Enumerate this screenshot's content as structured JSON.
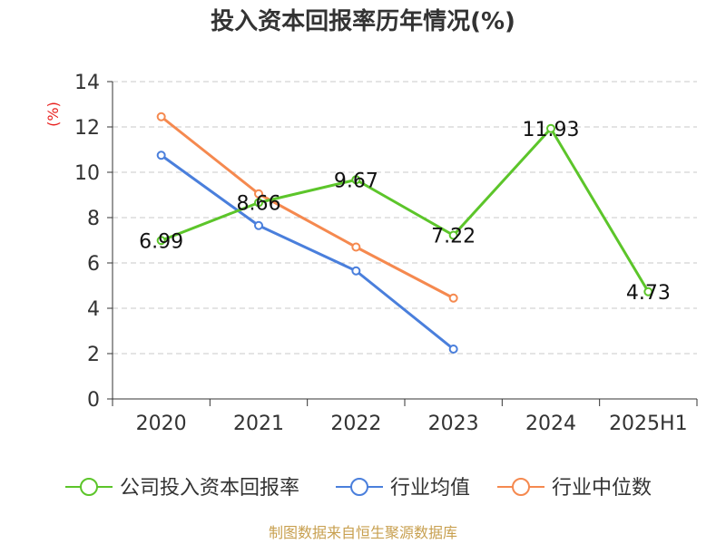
{
  "chart_data": {
    "type": "line",
    "title": "投入资本回报率历年情况(%)",
    "ylabel": "(%)",
    "categories": [
      "2020",
      "2021",
      "2022",
      "2023",
      "2024",
      "2025H1"
    ],
    "ylim": [
      0,
      14
    ],
    "yticks": [
      0,
      2,
      4,
      6,
      8,
      10,
      12,
      14
    ],
    "grid": true,
    "legend_position": "bottom",
    "series": [
      {
        "name": "公司投入资本回报率",
        "color": "#5cc52a",
        "values": [
          6.99,
          8.66,
          9.67,
          7.22,
          11.93,
          4.73
        ],
        "labels": [
          "6.99",
          "8.66",
          "9.67",
          "7.22",
          "11.93",
          "4.73"
        ]
      },
      {
        "name": "行业均值",
        "color": "#4a7fdc",
        "values": [
          10.75,
          7.65,
          5.65,
          2.2,
          null,
          null
        ],
        "labels": []
      },
      {
        "name": "行业中位数",
        "color": "#f5894f",
        "values": [
          12.45,
          9.05,
          6.7,
          4.45,
          null,
          null
        ],
        "labels": []
      }
    ]
  },
  "source": "制图数据来自恒生聚源数据库"
}
